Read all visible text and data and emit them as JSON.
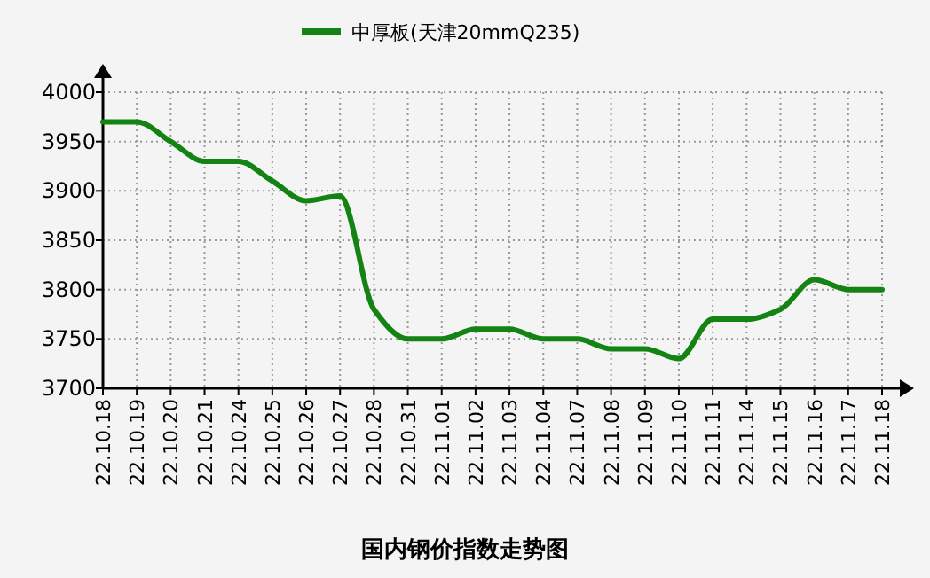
{
  "chart_data": {
    "type": "line",
    "title": "国内钢价指数走势图",
    "categories": [
      "22.10.18",
      "22.10.19",
      "22.10.20",
      "22.10.21",
      "22.10.24",
      "22.10.25",
      "22.10.26",
      "22.10.27",
      "22.10.28",
      "22.10.31",
      "22.11.01",
      "22.11.02",
      "22.11.03",
      "22.11.04",
      "22.11.07",
      "22.11.08",
      "22.11.09",
      "22.11.10",
      "22.11.11",
      "22.11.14",
      "22.11.15",
      "22.11.16",
      "22.11.17",
      "22.11.18"
    ],
    "series": [
      {
        "name": "中厚板(天津20mmQ235)",
        "color": "#138313",
        "values": [
          3970,
          3970,
          3950,
          3930,
          3930,
          3910,
          3890,
          3895,
          3780,
          3750,
          3750,
          3760,
          3760,
          3750,
          3750,
          3740,
          3740,
          3730,
          3770,
          3770,
          3780,
          3810,
          3800,
          3800
        ]
      }
    ],
    "ylim": [
      3700,
      4000
    ],
    "yticks": [
      3700,
      3750,
      3800,
      3850,
      3900,
      3950,
      4000
    ],
    "grid": true,
    "legend": "top",
    "marker": "none",
    "line_style": "solid"
  }
}
